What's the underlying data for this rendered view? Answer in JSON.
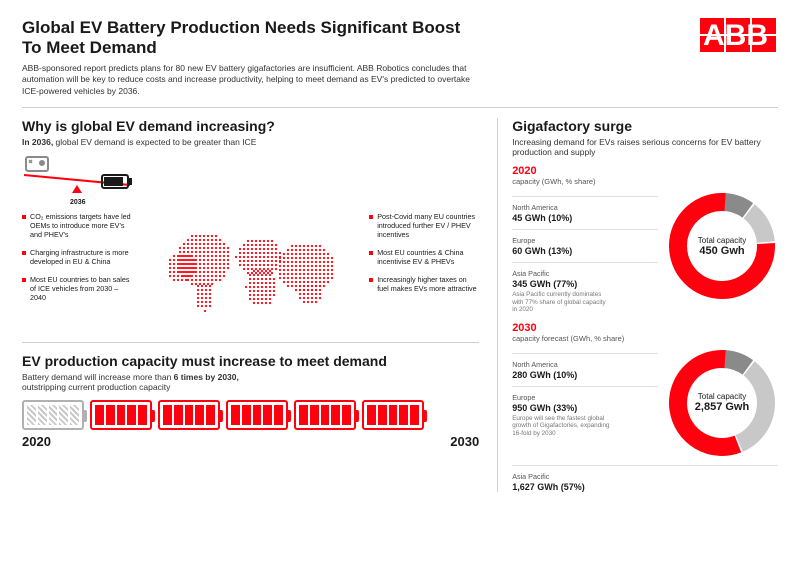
{
  "colors": {
    "brand": "#ff000f",
    "gray": "#8a8a8a",
    "lightgray": "#c8c8c8",
    "text": "#1a1a1a"
  },
  "header": {
    "title": "Global EV Battery Production Needs Significant Boost To Meet Demand",
    "subtitle": "ABB-sponsored report predicts plans for 80 new EV battery gigafactories are insufficient. ABB Robotics concludes that automation will be key to reduce costs and increase productivity, helping to meet demand as EV's predicted to overtake ICE-powered vehicles by 2036.",
    "logo_text": "ABB"
  },
  "demand": {
    "title": "Why is global EV demand increasing?",
    "sub_prefix": "In 2036,",
    "sub_rest": " global EV demand is expected to be greater than ICE",
    "balance_year": "2036",
    "left_bullets": [
      "CO₂ emissions targets have led OEMs to introduce more EV's and PHEV's",
      "Charging infrastructure is more developed in EU & China",
      "Most EU countries to ban sales of ICE vehicles from 2030 – 2040"
    ],
    "right_bullets": [
      "Post-Covid many EU countries introduced further EV / PHEV incentives",
      "Most EU countries & China incentivise EV & PHEVs",
      "Increasingly higher taxes on fuel makes EVs more attractive"
    ]
  },
  "capacity": {
    "title": "EV production capacity must increase to meet demand",
    "sub_html": "Battery demand will increase more than 6 times by 2030, outstripping current production capacity",
    "battery_count": 6,
    "year_start": "2020",
    "year_end": "2030"
  },
  "surge": {
    "title": "Gigafactory surge",
    "subtitle": "Increasing demand for EVs raises serious concerns for EV battery production and supply",
    "y2020": {
      "year": "2020",
      "cap_label": "capacity (GWh, % share)",
      "regions": [
        {
          "name": "North America",
          "val": "45 GWh (10%)"
        },
        {
          "name": "Europe",
          "val": "60 GWh (13%)"
        },
        {
          "name": "Asia Pacific",
          "val": "345 GWh (77%)"
        }
      ],
      "note": "Asia Pacific currently dominates with 77% share of global capacity in 2020",
      "donut": {
        "center_l1": "Total capacity",
        "center_l2": "450 Gwh",
        "segments": [
          {
            "color": "#8a8a8a",
            "pct": 10
          },
          {
            "color": "#c8c8c8",
            "pct": 13
          },
          {
            "color": "#ff000f",
            "pct": 77
          }
        ]
      }
    },
    "y2030": {
      "year": "2030",
      "cap_label": "capacity forecast (GWh, % share)",
      "regions": [
        {
          "name": "North America",
          "val": "280 GWh (10%)"
        },
        {
          "name": "Europe",
          "val": "950 GWh (33%)"
        }
      ],
      "note": "Europe will see the fastest global growth of Gigafactories, expanding 16-fold by 2030",
      "last_region": {
        "name": "Asia Pacific",
        "val": "1,627 GWh (57%)"
      },
      "donut": {
        "center_l1": "Total capacity",
        "center_l2": "2,857 Gwh",
        "segments": [
          {
            "color": "#8a8a8a",
            "pct": 10
          },
          {
            "color": "#c8c8c8",
            "pct": 33
          },
          {
            "color": "#ff000f",
            "pct": 57
          }
        ]
      }
    }
  }
}
